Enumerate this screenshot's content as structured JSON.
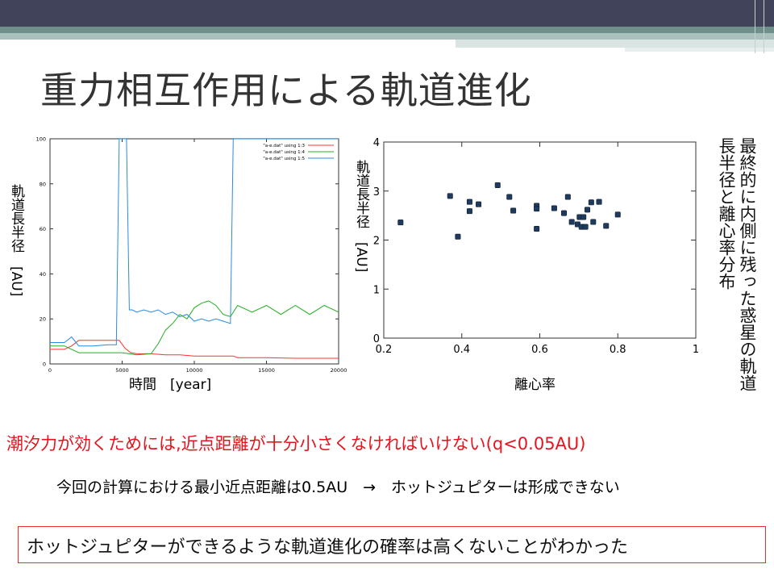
{
  "slide_title": "重力相互作用による軌道進化",
  "chart_data": [
    {
      "type": "line",
      "ylabel": "軌道長半径　[AU]",
      "xlabel": "時間　[year]",
      "xlim": [
        0,
        20000
      ],
      "ylim": [
        0,
        100
      ],
      "xticks": [
        "0",
        "5000",
        "10000",
        "15000",
        "20000"
      ],
      "yticks": [
        "0",
        "20",
        "40",
        "60",
        "80",
        "100"
      ],
      "legend_position": "top-right",
      "series": [
        {
          "name": "\"a-e.dat\" using 1:3",
          "color": "#ff3030",
          "x": [
            0,
            500,
            1000,
            1500,
            2000,
            3000,
            4000,
            4800,
            5200,
            5600,
            6000,
            7000,
            8000,
            9000,
            10000,
            12000,
            12700,
            13000,
            15000,
            17000,
            20000
          ],
          "y": [
            6.5,
            6.5,
            6.5,
            8,
            10.5,
            10.5,
            10.5,
            10.5,
            7,
            5,
            4.5,
            4.5,
            4,
            4,
            3.5,
            3.5,
            3.5,
            2.8,
            2.8,
            2.5,
            2.5
          ]
        },
        {
          "name": "\"a-e.dat\" using 1:4",
          "color": "#20b020",
          "x": [
            0,
            1000,
            2000,
            3000,
            4000,
            5000,
            6000,
            7000,
            7500,
            8000,
            8500,
            9000,
            9500,
            10000,
            10500,
            11000,
            11500,
            12000,
            12500,
            13000,
            14000,
            15000,
            16000,
            17000,
            18000,
            19000,
            20000
          ],
          "y": [
            8,
            8,
            5,
            5,
            5,
            5,
            4,
            4.5,
            9,
            15,
            18,
            22,
            20,
            25,
            27,
            28,
            26,
            22,
            21,
            26,
            23,
            26,
            22,
            26,
            22,
            26,
            23
          ]
        },
        {
          "name": "\"a-e.dat\" using 1:5",
          "color": "#2a8ae0",
          "x": [
            0,
            1000,
            1500,
            2000,
            3000,
            4000,
            4600,
            4800,
            5000,
            5300,
            5500,
            5700,
            6000,
            6500,
            7000,
            7500,
            8000,
            8500,
            9000,
            9500,
            10000,
            10500,
            11000,
            11500,
            12000,
            12500,
            12700,
            13000,
            20000
          ],
          "y": [
            9.5,
            9.5,
            12,
            8,
            8,
            8.5,
            8.5,
            100,
            100,
            100,
            24,
            24,
            23,
            24,
            23,
            24,
            22,
            23,
            21,
            22,
            19,
            20,
            19,
            20,
            19,
            18,
            100,
            100,
            100
          ]
        }
      ]
    },
    {
      "type": "scatter",
      "ylabel": "軌道長半径　[AU]",
      "xlabel": "離心率",
      "xlim": [
        0.2,
        1
      ],
      "ylim": [
        0,
        4
      ],
      "xticks": [
        "0.2",
        "0.4",
        "0.6",
        "0.8",
        "1"
      ],
      "yticks": [
        "0",
        "1",
        "2",
        "3",
        "4"
      ],
      "color": "#1f3a5c",
      "points": [
        [
          0.243,
          2.36
        ],
        [
          0.37,
          2.9
        ],
        [
          0.39,
          2.07
        ],
        [
          0.42,
          2.78
        ],
        [
          0.42,
          2.59
        ],
        [
          0.443,
          2.73
        ],
        [
          0.492,
          3.12
        ],
        [
          0.522,
          2.88
        ],
        [
          0.532,
          2.6
        ],
        [
          0.592,
          2.7
        ],
        [
          0.592,
          2.64
        ],
        [
          0.592,
          2.23
        ],
        [
          0.637,
          2.65
        ],
        [
          0.662,
          2.55
        ],
        [
          0.672,
          2.88
        ],
        [
          0.682,
          2.37
        ],
        [
          0.697,
          2.32
        ],
        [
          0.702,
          2.47
        ],
        [
          0.707,
          2.27
        ],
        [
          0.712,
          2.47
        ],
        [
          0.717,
          2.27
        ],
        [
          0.722,
          2.62
        ],
        [
          0.732,
          2.77
        ],
        [
          0.737,
          2.37
        ],
        [
          0.752,
          2.78
        ],
        [
          0.77,
          2.29
        ],
        [
          0.8,
          2.52
        ]
      ]
    }
  ],
  "side_caption": "最終的に内側に残った惑星の軌道長半径と離心率分布",
  "red_statement": "潮汐力が効くためには,近点距離が十分小さくなければいけない(q<0.05AU)",
  "black_statement": "今回の計算における最小近点距離は0.5AU　→　ホットジュピターは形成できない",
  "conclusion": "ホットジュピターができるような軌道進化の確率は高くないことがわかった"
}
